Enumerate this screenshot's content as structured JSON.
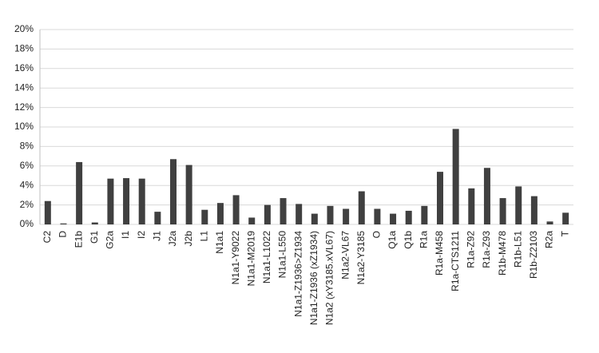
{
  "chart_data": {
    "type": "bar",
    "categories": [
      "C2",
      "D",
      "E1b",
      "G1",
      "G2a",
      "I1",
      "I2",
      "J1",
      "J2a",
      "J2b",
      "L1",
      "N1a1",
      "N1a1-Y9022",
      "N1a1-M2019",
      "N1a1-L1022",
      "N1a1-L550",
      "N1a1-Z1936>Z1934",
      "N1a1-Z1936 (xZ1934)",
      "N1a2 (xY3185.xVL67)",
      "N1a2-VL67",
      "N1a2-Y3185",
      "O",
      "Q1a",
      "Q1b",
      "R1a",
      "R1a-M458",
      "R1a-CTS1211",
      "R1a-Z92",
      "R1a-Z93",
      "R1b-M478",
      "R1b-L51",
      "R1b-Z2103",
      "R2a",
      "T"
    ],
    "values": [
      2.4,
      0.1,
      6.4,
      0.2,
      4.7,
      4.75,
      4.7,
      1.3,
      6.7,
      6.1,
      1.5,
      2.2,
      3.0,
      0.7,
      2.0,
      2.7,
      2.1,
      1.1,
      1.9,
      1.6,
      3.4,
      1.6,
      1.1,
      1.4,
      1.9,
      5.4,
      9.8,
      3.7,
      5.8,
      2.7,
      3.9,
      2.9,
      0.3,
      1.2
    ],
    "color": "#404040",
    "ylim": [
      0,
      20
    ],
    "yticks": [
      {
        "value": 0,
        "label": "0%"
      },
      {
        "value": 2,
        "label": "2%"
      },
      {
        "value": 4,
        "label": "4%"
      },
      {
        "value": 6,
        "label": "6%"
      },
      {
        "value": 8,
        "label": "8%"
      },
      {
        "value": 10,
        "label": "10%"
      },
      {
        "value": 12,
        "label": "12%"
      },
      {
        "value": 14,
        "label": "14%"
      },
      {
        "value": 16,
        "label": "16%"
      },
      {
        "value": 18,
        "label": "18%"
      },
      {
        "value": 20,
        "label": "20%"
      }
    ],
    "grid": true
  }
}
